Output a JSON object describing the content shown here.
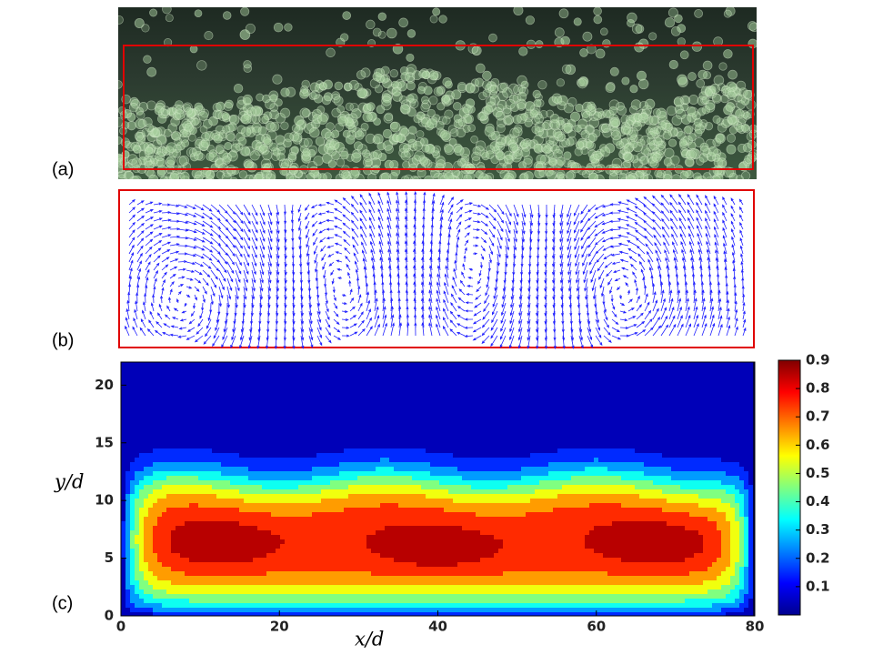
{
  "panel_labels": [
    "(a)",
    "(b)",
    "(c)"
  ],
  "chart_data": {
    "type": "contour",
    "xlabel": "x/d",
    "ylabel": "y/d",
    "xlim": [
      0,
      80
    ],
    "ylim": [
      0,
      22
    ],
    "xticks": [
      0,
      20,
      40,
      60,
      80
    ],
    "yticks": [
      0,
      5,
      10,
      15,
      20
    ],
    "clim": [
      0,
      0.9
    ],
    "cticks": [
      0.1,
      0.2,
      0.3,
      0.4,
      0.5,
      0.6,
      0.7,
      0.8,
      0.9
    ],
    "colormap": "jet"
  }
}
